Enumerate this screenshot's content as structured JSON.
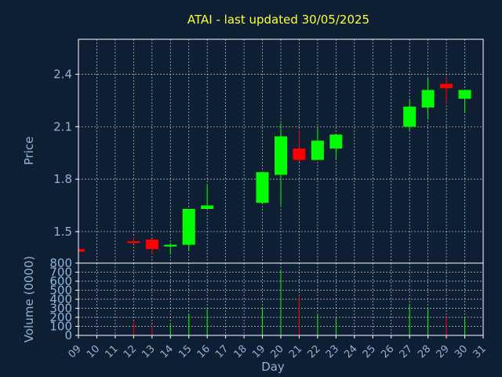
{
  "chart_data": [
    {
      "type": "candlestick",
      "title": "ATAI - last updated 30/05/2025",
      "ylabel": "Price",
      "ylim": [
        1.32,
        2.6
      ],
      "yticks": [
        1.5,
        1.8,
        2.1,
        2.4
      ],
      "ytick_labels": [
        "1.5",
        "1.8",
        "2.1",
        "2.4"
      ],
      "grid": true,
      "colors": {
        "up": "#00ff00",
        "down": "#ff0000"
      },
      "candles": [
        {
          "day": 9,
          "open": 1.4,
          "high": 1.4,
          "low": 1.385,
          "close": 1.385
        },
        {
          "day": 12,
          "open": 1.445,
          "high": 1.47,
          "low": 1.43,
          "close": 1.435
        },
        {
          "day": 13,
          "open": 1.455,
          "high": 1.46,
          "low": 1.37,
          "close": 1.4
        },
        {
          "day": 14,
          "open": 1.415,
          "high": 1.435,
          "low": 1.37,
          "close": 1.425
        },
        {
          "day": 15,
          "open": 1.425,
          "high": 1.63,
          "low": 1.39,
          "close": 1.63
        },
        {
          "day": 16,
          "open": 1.63,
          "high": 1.77,
          "low": 1.63,
          "close": 1.65
        },
        {
          "day": 19,
          "open": 1.665,
          "high": 1.84,
          "low": 1.66,
          "close": 1.84
        },
        {
          "day": 20,
          "open": 1.825,
          "high": 2.12,
          "low": 1.65,
          "close": 2.045
        },
        {
          "day": 21,
          "open": 1.975,
          "high": 2.08,
          "low": 1.9,
          "close": 1.91
        },
        {
          "day": 22,
          "open": 1.91,
          "high": 2.09,
          "low": 1.91,
          "close": 2.02
        },
        {
          "day": 23,
          "open": 1.975,
          "high": 2.06,
          "low": 1.91,
          "close": 2.055
        },
        {
          "day": 27,
          "open": 2.1,
          "high": 2.26,
          "low": 2.08,
          "close": 2.215
        },
        {
          "day": 28,
          "open": 2.21,
          "high": 2.38,
          "low": 2.14,
          "close": 2.31
        },
        {
          "day": 29,
          "open": 2.345,
          "high": 2.38,
          "low": 2.23,
          "close": 2.32
        },
        {
          "day": 30,
          "open": 2.26,
          "high": 2.31,
          "low": 2.18,
          "close": 2.31
        }
      ]
    },
    {
      "type": "bar",
      "ylabel": "Volume (0000)",
      "xlabel": "Day",
      "ylim": [
        0,
        800
      ],
      "yticks": [
        0,
        100,
        200,
        300,
        400,
        500,
        600,
        700,
        800
      ],
      "ytick_labels": [
        "0",
        "100",
        "200",
        "300",
        "400",
        "500",
        "600",
        "700",
        "800"
      ],
      "xticks": [
        9,
        10,
        11,
        12,
        13,
        14,
        15,
        16,
        17,
        18,
        19,
        20,
        21,
        22,
        23,
        24,
        25,
        26,
        27,
        28,
        29,
        30,
        31
      ],
      "xtick_labels": [
        "09",
        "10",
        "11",
        "12",
        "13",
        "14",
        "15",
        "16",
        "17",
        "18",
        "19",
        "20",
        "21",
        "22",
        "23",
        "24",
        "25",
        "26",
        "27",
        "28",
        "29",
        "30",
        "31"
      ],
      "xlim": [
        9,
        31
      ],
      "grid": true,
      "bars": [
        {
          "day": 9,
          "value": 10,
          "direction": "down"
        },
        {
          "day": 12,
          "value": 150,
          "direction": "down"
        },
        {
          "day": 13,
          "value": 110,
          "direction": "down"
        },
        {
          "day": 14,
          "value": 120,
          "direction": "up"
        },
        {
          "day": 15,
          "value": 240,
          "direction": "up"
        },
        {
          "day": 16,
          "value": 290,
          "direction": "up"
        },
        {
          "day": 19,
          "value": 310,
          "direction": "up"
        },
        {
          "day": 20,
          "value": 720,
          "direction": "up"
        },
        {
          "day": 21,
          "value": 440,
          "direction": "down"
        },
        {
          "day": 22,
          "value": 230,
          "direction": "up"
        },
        {
          "day": 23,
          "value": 190,
          "direction": "up"
        },
        {
          "day": 27,
          "value": 350,
          "direction": "up"
        },
        {
          "day": 28,
          "value": 300,
          "direction": "up"
        },
        {
          "day": 29,
          "value": 200,
          "direction": "down"
        },
        {
          "day": 30,
          "value": 190,
          "direction": "up"
        }
      ]
    }
  ]
}
